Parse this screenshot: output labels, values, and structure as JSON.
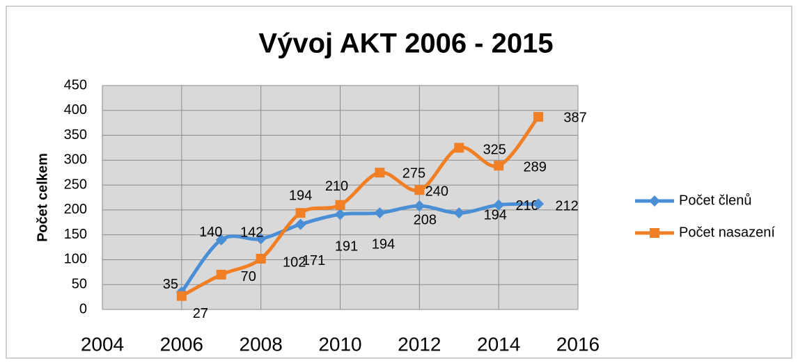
{
  "chart_data": {
    "type": "line",
    "title": "Vývoj AKT 2006 - 2015",
    "y_label": "Počet celkem",
    "x": [
      2006,
      2007,
      2008,
      2009,
      2010,
      2011,
      2012,
      2013,
      2014,
      2015
    ],
    "series": [
      {
        "name": "Počet členů",
        "color": "#4a8ed6",
        "marker": "diamond",
        "values": [
          35,
          140,
          142,
          171,
          191,
          194,
          208,
          194,
          210,
          212
        ]
      },
      {
        "name": "Počet nasazení",
        "color": "#f07f25",
        "marker": "square",
        "values": [
          27,
          70,
          102,
          194,
          210,
          275,
          240,
          325,
          289,
          387
        ]
      }
    ],
    "xlim": [
      2004,
      2016
    ],
    "xticks": [
      2004,
      2006,
      2008,
      2010,
      2012,
      2014,
      2016
    ],
    "ylim": [
      0,
      450
    ],
    "yticks": [
      0,
      50,
      100,
      150,
      200,
      250,
      300,
      350,
      400,
      450
    ],
    "grid": true,
    "legend": "right",
    "smooth": true
  }
}
